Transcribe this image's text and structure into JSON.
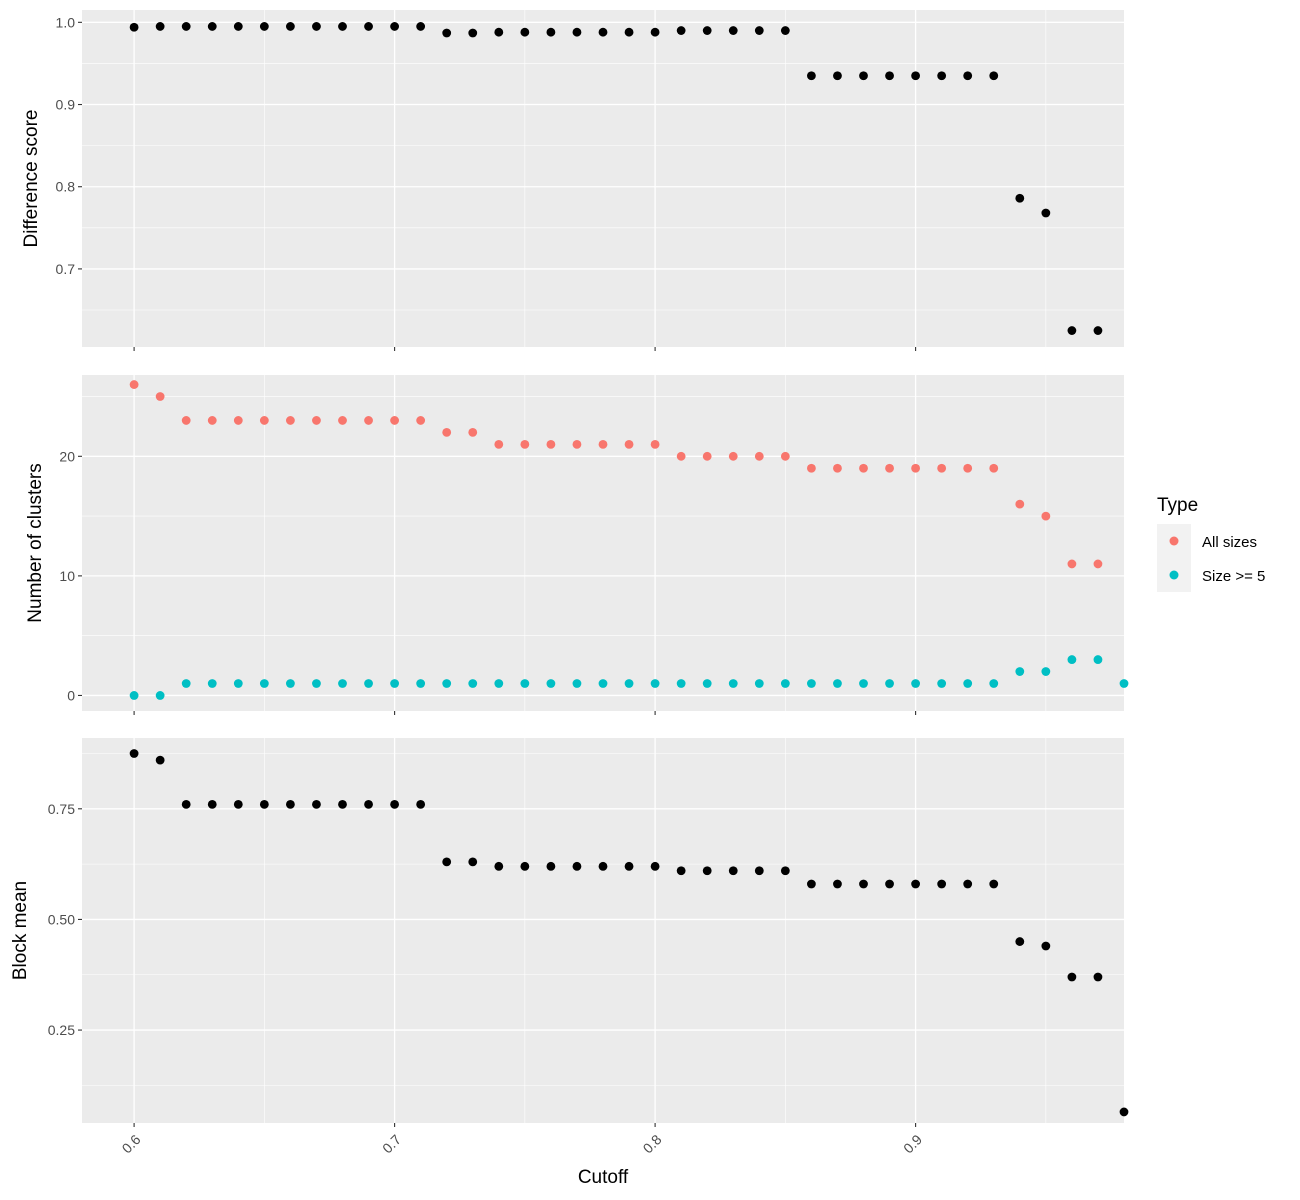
{
  "chart_data": [
    {
      "type": "scatter",
      "ylabel": "Difference score",
      "xlabel": "",
      "xlim": [
        0.58,
        0.98
      ],
      "ylim": [
        0.605,
        1.015
      ],
      "x_ticks": [
        0.6,
        0.7,
        0.8,
        0.9
      ],
      "y_ticks": [
        0.7,
        0.8,
        0.9,
        1.0
      ],
      "y_tick_labels": [
        "0.7",
        "0.8",
        "0.9",
        "1.0"
      ],
      "grid": true,
      "series": [
        {
          "color": "#000000",
          "x": [
            0.6,
            0.61,
            0.62,
            0.63,
            0.64,
            0.65,
            0.66,
            0.67,
            0.68,
            0.69,
            0.7,
            0.71,
            0.72,
            0.73,
            0.74,
            0.75,
            0.76,
            0.77,
            0.78,
            0.79,
            0.8,
            0.81,
            0.82,
            0.83,
            0.84,
            0.85,
            0.86,
            0.87,
            0.88,
            0.89,
            0.9,
            0.91,
            0.92,
            0.93,
            0.94,
            0.95,
            0.96,
            0.97
          ],
          "y": [
            0.994,
            0.995,
            0.995,
            0.995,
            0.995,
            0.995,
            0.995,
            0.995,
            0.995,
            0.995,
            0.995,
            0.995,
            0.987,
            0.987,
            0.988,
            0.988,
            0.988,
            0.988,
            0.988,
            0.988,
            0.988,
            0.99,
            0.99,
            0.99,
            0.99,
            0.99,
            0.935,
            0.935,
            0.935,
            0.935,
            0.935,
            0.935,
            0.935,
            0.935,
            0.786,
            0.768,
            0.625,
            0.625
          ]
        }
      ]
    },
    {
      "type": "scatter",
      "ylabel": "Number of clusters",
      "xlabel": "",
      "xlim": [
        0.58,
        0.98
      ],
      "ylim": [
        -1.3,
        26.8
      ],
      "x_ticks": [
        0.6,
        0.7,
        0.8,
        0.9
      ],
      "y_ticks": [
        0,
        10,
        20
      ],
      "y_tick_labels": [
        "0",
        "10",
        "20"
      ],
      "grid": true,
      "legend": {
        "title": "Type",
        "position": "right",
        "entries": [
          {
            "label": "All sizes",
            "color": "#F8766D"
          },
          {
            "label": "Size >= 5",
            "color": "#00BFC4"
          }
        ]
      },
      "series": [
        {
          "name": "All sizes",
          "color": "#F8766D",
          "x": [
            0.6,
            0.61,
            0.62,
            0.63,
            0.64,
            0.65,
            0.66,
            0.67,
            0.68,
            0.69,
            0.7,
            0.71,
            0.72,
            0.73,
            0.74,
            0.75,
            0.76,
            0.77,
            0.78,
            0.79,
            0.8,
            0.81,
            0.82,
            0.83,
            0.84,
            0.85,
            0.86,
            0.87,
            0.88,
            0.89,
            0.9,
            0.91,
            0.92,
            0.93,
            0.94,
            0.95,
            0.96,
            0.97
          ],
          "y": [
            26,
            25,
            23,
            23,
            23,
            23,
            23,
            23,
            23,
            23,
            23,
            23,
            22,
            22,
            21,
            21,
            21,
            21,
            21,
            21,
            21,
            20,
            20,
            20,
            20,
            20,
            19,
            19,
            19,
            19,
            19,
            19,
            19,
            19,
            16,
            15,
            11,
            11
          ]
        },
        {
          "name": "Size >= 5",
          "color": "#00BFC4",
          "x": [
            0.6,
            0.61,
            0.62,
            0.63,
            0.64,
            0.65,
            0.66,
            0.67,
            0.68,
            0.69,
            0.7,
            0.71,
            0.72,
            0.73,
            0.74,
            0.75,
            0.76,
            0.77,
            0.78,
            0.79,
            0.8,
            0.81,
            0.82,
            0.83,
            0.84,
            0.85,
            0.86,
            0.87,
            0.88,
            0.89,
            0.9,
            0.91,
            0.92,
            0.93,
            0.94,
            0.95,
            0.96,
            0.97,
            0.98
          ],
          "y": [
            0,
            0,
            1,
            1,
            1,
            1,
            1,
            1,
            1,
            1,
            1,
            1,
            1,
            1,
            1,
            1,
            1,
            1,
            1,
            1,
            1,
            1,
            1,
            1,
            1,
            1,
            1,
            1,
            1,
            1,
            1,
            1,
            1,
            1,
            2,
            2,
            3,
            3,
            1
          ]
        }
      ]
    },
    {
      "type": "scatter",
      "ylabel": "Block mean",
      "xlabel": "Cutoff",
      "xlim": [
        0.58,
        0.98
      ],
      "ylim": [
        0.04,
        0.91
      ],
      "x_ticks": [
        0.6,
        0.7,
        0.8,
        0.9
      ],
      "x_tick_labels": [
        "0.6",
        "0.7",
        "0.8",
        "0.9"
      ],
      "y_ticks": [
        0.25,
        0.5,
        0.75
      ],
      "y_tick_labels": [
        "0.25",
        "0.50",
        "0.75"
      ],
      "grid": true,
      "series": [
        {
          "color": "#000000",
          "x": [
            0.6,
            0.61,
            0.62,
            0.63,
            0.64,
            0.65,
            0.66,
            0.67,
            0.68,
            0.69,
            0.7,
            0.71,
            0.72,
            0.73,
            0.74,
            0.75,
            0.76,
            0.77,
            0.78,
            0.79,
            0.8,
            0.81,
            0.82,
            0.83,
            0.84,
            0.85,
            0.86,
            0.87,
            0.88,
            0.89,
            0.9,
            0.91,
            0.92,
            0.93,
            0.94,
            0.95,
            0.96,
            0.97,
            0.98
          ],
          "y": [
            0.875,
            0.86,
            0.76,
            0.76,
            0.76,
            0.76,
            0.76,
            0.76,
            0.76,
            0.76,
            0.76,
            0.76,
            0.63,
            0.63,
            0.62,
            0.62,
            0.62,
            0.62,
            0.62,
            0.62,
            0.62,
            0.61,
            0.61,
            0.61,
            0.61,
            0.61,
            0.58,
            0.58,
            0.58,
            0.58,
            0.58,
            0.58,
            0.58,
            0.58,
            0.45,
            0.44,
            0.37,
            0.37,
            0.065
          ]
        }
      ]
    }
  ]
}
